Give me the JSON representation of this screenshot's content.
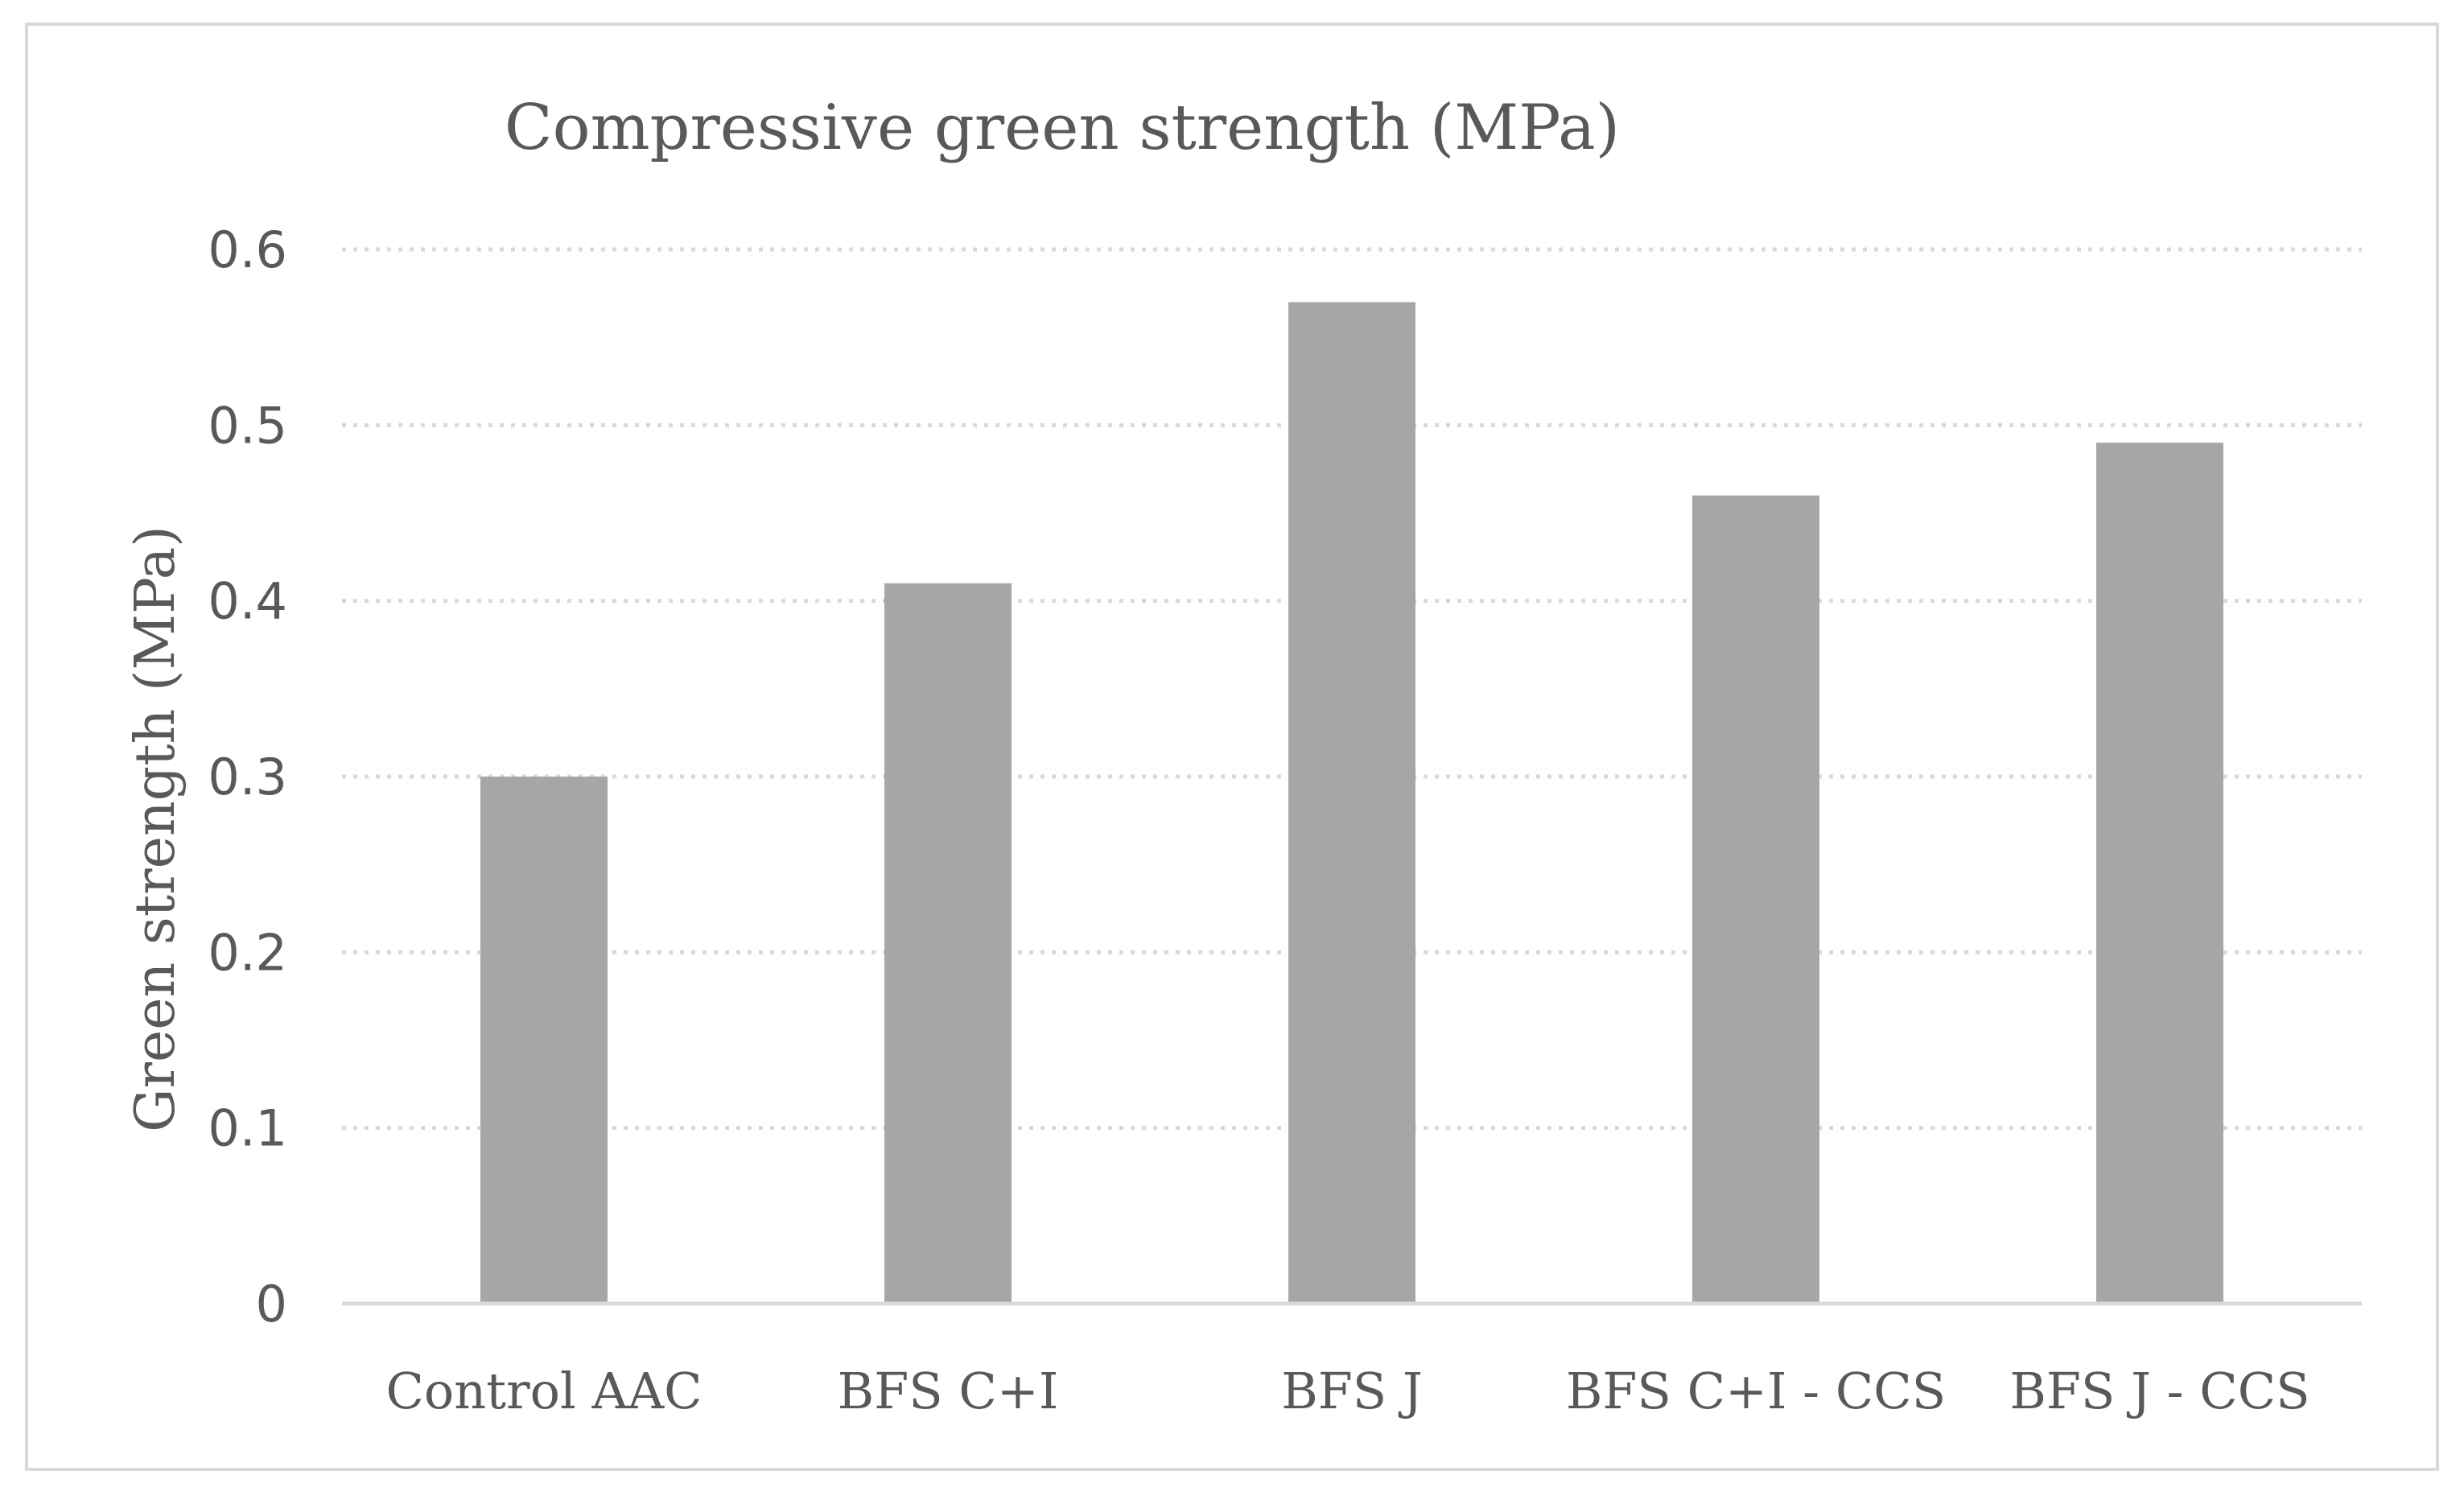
{
  "chart_data": {
    "type": "bar",
    "title": "Compressive green strength (MPa)",
    "xlabel": "",
    "ylabel": "Green strength (MPa)",
    "categories": [
      "Control AAC",
      "BFS C+I",
      "BFS J",
      "BFS C+I - CCS",
      "BFS J - CCS"
    ],
    "values": [
      0.3,
      0.41,
      0.57,
      0.46,
      0.49
    ],
    "ylim": [
      0,
      0.6
    ],
    "yticks": [
      "0",
      "0.1",
      "0.2",
      "0.3",
      "0.4",
      "0.5",
      "0.6"
    ],
    "grid": true,
    "legend": "none",
    "colors": {
      "bar": "#a6a6a6",
      "grid": "#d9d9d9",
      "axis": "#d9d9d9",
      "text": "#595959"
    }
  }
}
